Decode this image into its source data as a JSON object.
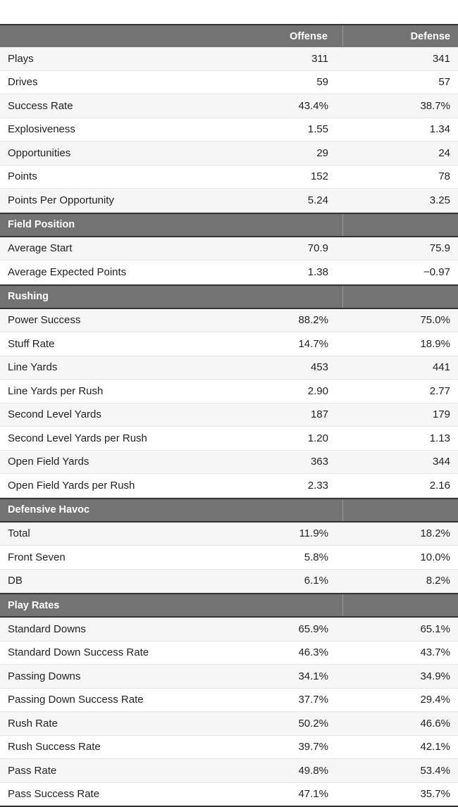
{
  "header": {
    "label": "",
    "offense": "Offense",
    "defense": "Defense"
  },
  "sections": [
    {
      "title": "",
      "rows": [
        {
          "label": "Plays",
          "offense": "311",
          "defense": "341"
        },
        {
          "label": "Drives",
          "offense": "59",
          "defense": "57"
        },
        {
          "label": "Success Rate",
          "offense": "43.4%",
          "defense": "38.7%"
        },
        {
          "label": "Explosiveness",
          "offense": "1.55",
          "defense": "1.34"
        },
        {
          "label": "Opportunities",
          "offense": "29",
          "defense": "24"
        },
        {
          "label": "Points",
          "offense": "152",
          "defense": "78"
        },
        {
          "label": "Points Per Opportunity",
          "offense": "5.24",
          "defense": "3.25"
        }
      ]
    },
    {
      "title": "Field Position",
      "rows": [
        {
          "label": "Average Start",
          "offense": "70.9",
          "defense": "75.9"
        },
        {
          "label": "Average Expected Points",
          "offense": "1.38",
          "defense": "−0.97"
        }
      ]
    },
    {
      "title": "Rushing",
      "rows": [
        {
          "label": "Power Success",
          "offense": "88.2%",
          "defense": "75.0%"
        },
        {
          "label": "Stuff Rate",
          "offense": "14.7%",
          "defense": "18.9%"
        },
        {
          "label": "Line Yards",
          "offense": "453",
          "defense": "441"
        },
        {
          "label": "Line Yards per Rush",
          "offense": "2.90",
          "defense": "2.77"
        },
        {
          "label": "Second Level Yards",
          "offense": "187",
          "defense": "179"
        },
        {
          "label": "Second Level Yards per Rush",
          "offense": "1.20",
          "defense": "1.13"
        },
        {
          "label": "Open Field Yards",
          "offense": "363",
          "defense": "344"
        },
        {
          "label": "Open Field Yards per Rush",
          "offense": "2.33",
          "defense": "2.16"
        }
      ]
    },
    {
      "title": "Defensive Havoc",
      "rows": [
        {
          "label": "Total",
          "offense": "11.9%",
          "defense": "18.2%"
        },
        {
          "label": "Front Seven",
          "offense": "5.8%",
          "defense": "10.0%"
        },
        {
          "label": "DB",
          "offense": "6.1%",
          "defense": "8.2%"
        }
      ]
    },
    {
      "title": "Play Rates",
      "rows": [
        {
          "label": "Standard Downs",
          "offense": "65.9%",
          "defense": "65.1%"
        },
        {
          "label": "Standard Down Success Rate",
          "offense": "46.3%",
          "defense": "43.7%"
        },
        {
          "label": "Passing Downs",
          "offense": "34.1%",
          "defense": "34.9%"
        },
        {
          "label": "Passing Down Success Rate",
          "offense": "37.7%",
          "defense": "29.4%"
        },
        {
          "label": "Rush Rate",
          "offense": "50.2%",
          "defense": "46.6%"
        },
        {
          "label": "Rush Success Rate",
          "offense": "39.7%",
          "defense": "42.1%"
        },
        {
          "label": "Pass Rate",
          "offense": "49.8%",
          "defense": "53.4%"
        },
        {
          "label": "Pass Success Rate",
          "offense": "47.1%",
          "defense": "35.7%"
        }
      ]
    }
  ],
  "colors": {
    "header_bg": "#737373",
    "header_text": "#ffffff",
    "row_alt_bg": "#f6f6f6",
    "row_bg": "#ffffff",
    "rule": "#333333"
  }
}
